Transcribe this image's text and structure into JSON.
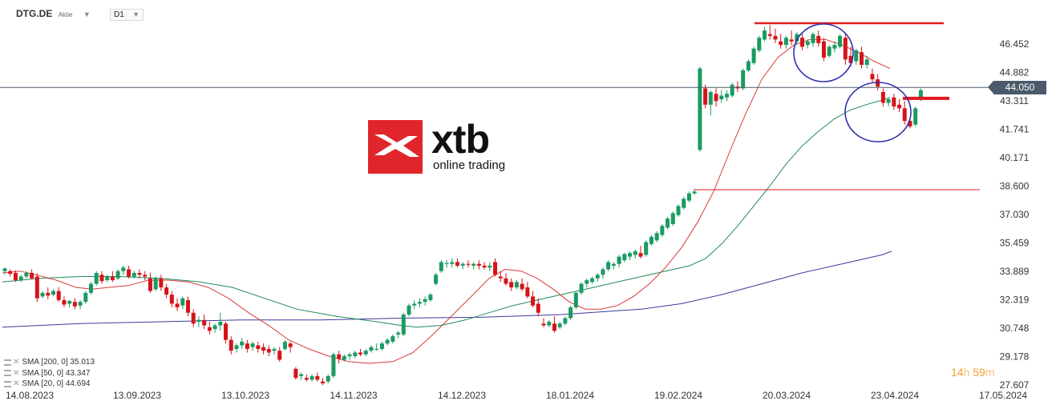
{
  "toolbar": {
    "symbol": "DTG.DE",
    "symbol_kind": "Aktie",
    "timeframe": "D1"
  },
  "logo": {
    "brand": "xtb",
    "tagline": "online trading"
  },
  "price_tag": "44.050",
  "timer": {
    "hours": "14",
    "hours_unit": "h",
    "minutes": "59",
    "minutes_unit": "m"
  },
  "legend": [
    {
      "label": "SMA [200, 0] 35.013",
      "color": "#3a3a9a"
    },
    {
      "label": "SMA [50, 0] 43.347",
      "color": "#1f8a5a"
    },
    {
      "label": "SMA [20, 0] 44.694",
      "color": "#d93a3a"
    }
  ],
  "colors": {
    "up": "#1a9a62",
    "down": "#d4141a",
    "sma200": "#3a3a9a",
    "sma50": "#1f8a5a",
    "sma20": "#d93a3a",
    "annotation": "#e0191e",
    "circle": "#3030b0",
    "price_line": "#4b5a6b"
  },
  "chart_data": {
    "type": "candlestick",
    "y_ticks": [
      "46.452",
      "44.882",
      "43.311",
      "41.741",
      "40.171",
      "38.600",
      "37.030",
      "35.459",
      "33.889",
      "32.319",
      "30.748",
      "29.178",
      "27.607"
    ],
    "x_ticks": [
      "14.08.2023",
      "13.09.2023",
      "13.10.2023",
      "14.11.2023",
      "14.12.2023",
      "18.01.2024",
      "19.02.2024",
      "20.03.2024",
      "23.04.2024",
      "17.05.2024"
    ],
    "ylim": [
      27.607,
      46.452
    ],
    "current_price": 44.05,
    "candles": [
      [
        33.9,
        34.1,
        34.05,
        33.7
      ],
      [
        33.9,
        34.0,
        33.75,
        33.6
      ],
      [
        33.8,
        33.95,
        33.4,
        33.3
      ],
      [
        33.4,
        33.7,
        33.6,
        33.3
      ],
      [
        33.6,
        33.9,
        33.8,
        33.5
      ],
      [
        33.8,
        34.0,
        33.5,
        33.45
      ],
      [
        33.6,
        33.8,
        32.4,
        32.2
      ],
      [
        32.5,
        32.8,
        32.7,
        32.4
      ],
      [
        32.7,
        33.0,
        32.55,
        32.35
      ],
      [
        32.6,
        32.9,
        32.8,
        32.5
      ],
      [
        32.8,
        33.0,
        32.3,
        32.2
      ],
      [
        32.3,
        32.5,
        32.05,
        31.9
      ],
      [
        32.1,
        32.3,
        32.25,
        31.9
      ],
      [
        32.2,
        32.4,
        31.95,
        31.8
      ],
      [
        32.0,
        32.3,
        32.2,
        31.8
      ],
      [
        32.2,
        32.8,
        32.7,
        32.1
      ],
      [
        32.7,
        33.3,
        33.2,
        32.6
      ],
      [
        33.2,
        33.9,
        33.8,
        33.1
      ],
      [
        33.7,
        33.9,
        33.35,
        33.2
      ],
      [
        33.4,
        33.7,
        33.6,
        33.3
      ],
      [
        33.6,
        33.9,
        33.4,
        33.3
      ],
      [
        33.5,
        34.0,
        33.9,
        33.4
      ],
      [
        33.9,
        34.2,
        34.1,
        33.7
      ],
      [
        34.0,
        34.2,
        33.6,
        33.5
      ],
      [
        33.6,
        33.9,
        33.8,
        33.5
      ],
      [
        33.8,
        34.0,
        33.7,
        33.5
      ],
      [
        33.7,
        33.9,
        33.6,
        33.4
      ],
      [
        33.5,
        33.8,
        32.8,
        32.7
      ],
      [
        32.9,
        33.6,
        33.5,
        32.8
      ],
      [
        33.5,
        33.7,
        33.0,
        32.8
      ],
      [
        33.0,
        33.2,
        32.6,
        32.4
      ],
      [
        32.6,
        32.8,
        32.1,
        31.9
      ],
      [
        32.1,
        32.4,
        31.9,
        31.7
      ],
      [
        32.0,
        32.5,
        32.4,
        31.8
      ],
      [
        32.3,
        32.5,
        31.6,
        31.4
      ],
      [
        31.6,
        31.8,
        31.0,
        30.8
      ],
      [
        31.1,
        31.4,
        31.2,
        30.8
      ],
      [
        31.2,
        31.5,
        30.9,
        30.7
      ],
      [
        30.8,
        31.1,
        30.6,
        30.4
      ],
      [
        30.7,
        31.0,
        30.9,
        30.5
      ],
      [
        30.9,
        31.6,
        31.1,
        30.6
      ],
      [
        31.0,
        31.1,
        30.1,
        29.9
      ],
      [
        30.1,
        30.3,
        29.5,
        29.3
      ],
      [
        29.6,
        29.9,
        29.8,
        29.4
      ],
      [
        29.8,
        30.2,
        30.0,
        29.6
      ],
      [
        29.9,
        30.1,
        29.6,
        29.4
      ],
      [
        29.7,
        30.0,
        29.9,
        29.5
      ],
      [
        29.8,
        30.0,
        29.6,
        29.4
      ],
      [
        29.7,
        29.9,
        29.5,
        29.3
      ],
      [
        29.6,
        29.8,
        29.4,
        29.2
      ],
      [
        29.5,
        29.7,
        29.6,
        29.3
      ],
      [
        29.5,
        29.7,
        29.0,
        28.9
      ],
      [
        29.6,
        30.1,
        30.0,
        29.5
      ],
      [
        29.9,
        30.0,
        29.7,
        29.4
      ],
      [
        28.5,
        28.6,
        28.0,
        27.9
      ],
      [
        28.1,
        28.3,
        28.2,
        27.9
      ],
      [
        28.0,
        28.2,
        27.9,
        27.8
      ],
      [
        27.9,
        28.2,
        28.1,
        27.8
      ],
      [
        28.1,
        28.3,
        27.9,
        27.8
      ],
      [
        27.8,
        28.0,
        27.7,
        27.6
      ],
      [
        27.8,
        28.2,
        28.1,
        27.7
      ],
      [
        28.1,
        29.4,
        29.3,
        28.0
      ],
      [
        29.3,
        29.5,
        29.05,
        28.8
      ],
      [
        29.0,
        29.3,
        29.2,
        28.9
      ],
      [
        29.2,
        29.4,
        29.3,
        29.0
      ],
      [
        29.2,
        29.5,
        29.4,
        29.1
      ],
      [
        29.4,
        29.6,
        29.3,
        29.2
      ],
      [
        29.3,
        29.6,
        29.5,
        29.2
      ],
      [
        29.5,
        29.8,
        29.7,
        29.4
      ],
      [
        29.6,
        29.9,
        29.6,
        29.5
      ],
      [
        29.6,
        30.0,
        29.9,
        29.5
      ],
      [
        29.9,
        30.2,
        30.1,
        29.8
      ],
      [
        30.0,
        30.4,
        30.3,
        29.9
      ],
      [
        30.4,
        30.6,
        30.5,
        30.2
      ],
      [
        30.4,
        31.6,
        31.5,
        30.3
      ],
      [
        31.5,
        32.1,
        32.0,
        31.4
      ],
      [
        32.0,
        32.3,
        32.1,
        31.8
      ],
      [
        32.1,
        32.4,
        32.2,
        31.9
      ],
      [
        32.2,
        32.5,
        32.35,
        32.0
      ],
      [
        32.3,
        32.7,
        32.6,
        32.2
      ],
      [
        33.2,
        33.8,
        33.7,
        33.1
      ],
      [
        33.9,
        34.5,
        34.4,
        33.8
      ],
      [
        34.3,
        34.5,
        34.35,
        34.1
      ],
      [
        34.3,
        34.6,
        34.4,
        34.1
      ],
      [
        34.4,
        34.6,
        34.2,
        34.1
      ],
      [
        34.2,
        34.4,
        34.3,
        34.0
      ],
      [
        34.3,
        34.5,
        34.25,
        34.1
      ],
      [
        34.2,
        34.4,
        34.3,
        34.0
      ],
      [
        34.3,
        34.5,
        34.2,
        34.0
      ],
      [
        34.2,
        34.4,
        34.1,
        34.0
      ],
      [
        34.1,
        34.4,
        34.2,
        33.9
      ],
      [
        34.4,
        34.6,
        33.7,
        33.6
      ],
      [
        33.6,
        33.9,
        33.5,
        33.3
      ],
      [
        33.5,
        33.8,
        33.2,
        33.1
      ],
      [
        33.3,
        33.5,
        33.0,
        32.8
      ],
      [
        33.0,
        33.4,
        33.3,
        32.9
      ],
      [
        33.2,
        33.5,
        32.9,
        32.8
      ],
      [
        33.0,
        33.3,
        32.5,
        32.4
      ],
      [
        32.5,
        32.8,
        32.0,
        31.9
      ],
      [
        32.1,
        32.4,
        31.6,
        31.4
      ],
      [
        31.0,
        31.3,
        30.9,
        30.8
      ],
      [
        30.9,
        31.2,
        31.1,
        30.8
      ],
      [
        31.0,
        31.4,
        30.6,
        30.5
      ],
      [
        30.8,
        31.1,
        31.0,
        30.7
      ],
      [
        31.0,
        31.4,
        31.3,
        30.9
      ],
      [
        31.3,
        32.0,
        31.9,
        31.2
      ],
      [
        31.9,
        32.8,
        32.7,
        31.8
      ],
      [
        32.7,
        33.3,
        33.2,
        32.6
      ],
      [
        33.2,
        33.5,
        33.4,
        33.0
      ],
      [
        33.3,
        33.6,
        33.5,
        33.2
      ],
      [
        33.5,
        33.8,
        33.7,
        33.3
      ],
      [
        33.7,
        34.1,
        34.0,
        33.5
      ],
      [
        34.0,
        34.5,
        34.4,
        33.9
      ],
      [
        34.2,
        34.4,
        34.3,
        34.0
      ],
      [
        34.3,
        34.8,
        34.7,
        34.1
      ],
      [
        34.5,
        34.9,
        34.85,
        34.4
      ],
      [
        34.7,
        35.0,
        34.9,
        34.5
      ],
      [
        34.8,
        35.1,
        35.0,
        34.6
      ],
      [
        34.9,
        35.3,
        34.7,
        34.6
      ],
      [
        34.8,
        35.6,
        35.5,
        34.7
      ],
      [
        35.4,
        35.9,
        35.8,
        35.3
      ],
      [
        35.6,
        36.1,
        36.0,
        35.5
      ],
      [
        35.9,
        36.5,
        36.4,
        35.8
      ],
      [
        36.3,
        36.9,
        36.8,
        36.2
      ],
      [
        36.5,
        37.2,
        37.1,
        36.4
      ],
      [
        37.0,
        37.6,
        37.5,
        36.9
      ],
      [
        37.4,
        38.0,
        37.9,
        37.3
      ],
      [
        37.8,
        38.3,
        38.2,
        37.7
      ],
      [
        38.2,
        38.4,
        38.3,
        38.1
      ],
      [
        40.6,
        45.2,
        45.1,
        40.5
      ],
      [
        44.0,
        44.2,
        43.1,
        42.9
      ],
      [
        43.1,
        43.9,
        43.8,
        42.5
      ],
      [
        43.7,
        44.0,
        43.3,
        43.0
      ],
      [
        43.4,
        43.9,
        43.6,
        43.2
      ],
      [
        43.5,
        43.9,
        43.7,
        43.3
      ],
      [
        43.6,
        44.3,
        44.2,
        43.5
      ],
      [
        44.1,
        44.4,
        44.0,
        43.8
      ],
      [
        44.0,
        45.1,
        45.0,
        43.9
      ],
      [
        45.0,
        45.6,
        45.5,
        44.9
      ],
      [
        45.4,
        46.3,
        46.2,
        45.3
      ],
      [
        46.1,
        46.9,
        46.8,
        46.0
      ],
      [
        46.7,
        47.4,
        47.2,
        46.6
      ],
      [
        47.0,
        47.5,
        46.9,
        46.7
      ],
      [
        46.9,
        47.3,
        46.7,
        46.5
      ],
      [
        46.6,
        47.0,
        46.4,
        46.2
      ],
      [
        46.4,
        46.9,
        46.8,
        46.2
      ],
      [
        46.7,
        47.2,
        46.6,
        46.4
      ],
      [
        46.6,
        47.1,
        47.0,
        46.4
      ],
      [
        46.8,
        47.1,
        46.3,
        46.1
      ],
      [
        46.4,
        46.7,
        46.6,
        46.2
      ],
      [
        46.5,
        47.1,
        47.0,
        46.3
      ],
      [
        46.9,
        47.2,
        46.5,
        46.3
      ],
      [
        46.6,
        46.8,
        45.7,
        45.5
      ],
      [
        45.8,
        46.4,
        46.3,
        45.7
      ],
      [
        46.2,
        46.6,
        46.4,
        46.0
      ],
      [
        46.3,
        47.0,
        46.9,
        46.2
      ],
      [
        46.8,
        47.0,
        45.6,
        45.3
      ],
      [
        45.8,
        46.3,
        45.4,
        45.2
      ],
      [
        45.5,
        46.2,
        46.1,
        45.3
      ],
      [
        46.0,
        46.3,
        45.3,
        45.1
      ],
      [
        45.3,
        45.8,
        45.6,
        45.1
      ],
      [
        44.8,
        45.1,
        44.5,
        44.3
      ],
      [
        44.5,
        44.8,
        44.1,
        43.9
      ],
      [
        43.8,
        44.0,
        43.2,
        43.0
      ],
      [
        43.2,
        43.5,
        43.4,
        43.0
      ],
      [
        43.5,
        43.7,
        43.0,
        42.8
      ],
      [
        43.1,
        43.4,
        42.9,
        42.7
      ],
      [
        42.9,
        43.3,
        42.2,
        42.0
      ],
      [
        42.2,
        42.4,
        41.9,
        41.8
      ],
      [
        42.0,
        43.0,
        42.9,
        41.9
      ],
      [
        43.4,
        44.0,
        43.9,
        43.3
      ]
    ],
    "sma20": [
      [
        33.8,
        3
      ],
      [
        33.9,
        25
      ],
      [
        33.7,
        45
      ],
      [
        33.4,
        70
      ],
      [
        33.0,
        95
      ],
      [
        32.9,
        115
      ],
      [
        33.0,
        135
      ],
      [
        33.1,
        160
      ],
      [
        33.4,
        185
      ],
      [
        33.4,
        210
      ],
      [
        33.3,
        235
      ],
      [
        33.0,
        260
      ],
      [
        32.4,
        285
      ],
      [
        31.6,
        310
      ],
      [
        30.9,
        335
      ],
      [
        30.1,
        360
      ],
      [
        29.6,
        385
      ],
      [
        29.2,
        410
      ],
      [
        28.9,
        435
      ],
      [
        28.8,
        460
      ],
      [
        28.9,
        490
      ],
      [
        29.4,
        515
      ],
      [
        30.4,
        540
      ],
      [
        31.5,
        565
      ],
      [
        32.6,
        590
      ],
      [
        33.5,
        610
      ],
      [
        34.0,
        630
      ],
      [
        33.9,
        650
      ],
      [
        33.5,
        670
      ],
      [
        32.9,
        690
      ],
      [
        32.2,
        710
      ],
      [
        31.8,
        730
      ],
      [
        31.8,
        750
      ],
      [
        32.0,
        770
      ],
      [
        32.5,
        790
      ],
      [
        33.2,
        810
      ],
      [
        34.1,
        830
      ],
      [
        35.2,
        850
      ],
      [
        36.6,
        870
      ],
      [
        38.3,
        890
      ],
      [
        40.5,
        910
      ],
      [
        42.6,
        930
      ],
      [
        44.5,
        950
      ],
      [
        45.7,
        970
      ],
      [
        46.4,
        990
      ],
      [
        46.7,
        1010
      ],
      [
        46.7,
        1030
      ],
      [
        46.4,
        1050
      ],
      [
        46.0,
        1070
      ],
      [
        45.5,
        1090
      ],
      [
        45.1,
        1110
      ]
    ],
    "sma50": [
      [
        33.3,
        3
      ],
      [
        33.5,
        50
      ],
      [
        33.6,
        100
      ],
      [
        33.6,
        150
      ],
      [
        33.5,
        200
      ],
      [
        33.3,
        250
      ],
      [
        33.0,
        290
      ],
      [
        32.4,
        330
      ],
      [
        31.8,
        370
      ],
      [
        31.4,
        420
      ],
      [
        31.1,
        470
      ],
      [
        30.9,
        500
      ],
      [
        30.8,
        520
      ],
      [
        30.9,
        550
      ],
      [
        31.2,
        580
      ],
      [
        31.6,
        610
      ],
      [
        32.0,
        640
      ],
      [
        32.3,
        670
      ],
      [
        32.5,
        690
      ],
      [
        32.7,
        710
      ],
      [
        33.0,
        740
      ],
      [
        33.3,
        770
      ],
      [
        33.6,
        800
      ],
      [
        33.9,
        830
      ],
      [
        34.2,
        860
      ],
      [
        34.6,
        880
      ],
      [
        35.4,
        900
      ],
      [
        36.4,
        920
      ],
      [
        37.5,
        940
      ],
      [
        38.6,
        960
      ],
      [
        39.8,
        980
      ],
      [
        40.8,
        1000
      ],
      [
        41.6,
        1020
      ],
      [
        42.3,
        1040
      ],
      [
        42.8,
        1060
      ],
      [
        43.1,
        1080
      ],
      [
        43.35,
        1100
      ],
      [
        43.5,
        1110
      ]
    ],
    "sma200": [
      [
        30.8,
        3
      ],
      [
        31.0,
        100
      ],
      [
        31.1,
        200
      ],
      [
        31.2,
        300
      ],
      [
        31.2,
        400
      ],
      [
        31.3,
        500
      ],
      [
        31.35,
        600
      ],
      [
        31.5,
        700
      ],
      [
        31.8,
        800
      ],
      [
        32.1,
        850
      ],
      [
        32.6,
        900
      ],
      [
        33.2,
        950
      ],
      [
        33.8,
        1000
      ],
      [
        34.3,
        1050
      ],
      [
        34.8,
        1100
      ],
      [
        35.0,
        1112
      ]
    ],
    "annotations": {
      "resistance_top": 47.6,
      "horizontal_mid": 38.4,
      "target_marker": 43.45
    }
  }
}
